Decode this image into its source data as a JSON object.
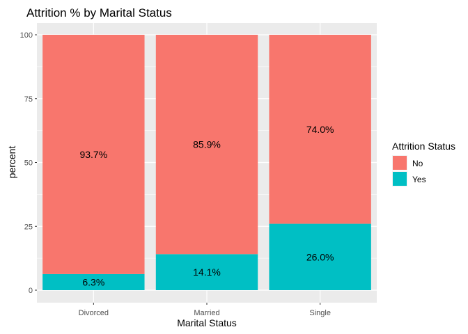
{
  "chart_data": {
    "type": "bar",
    "stacked": true,
    "title": "Attrition % by Marital Status",
    "xlabel": "Marital Status",
    "ylabel": "percent",
    "ylim": [
      0,
      100
    ],
    "yticks": [
      0,
      25,
      50,
      75,
      100
    ],
    "grid": true,
    "categories": [
      "Divorced",
      "Married",
      "Single"
    ],
    "series": [
      {
        "name": "No",
        "color": "#F8766D",
        "values": [
          93.7,
          85.9,
          74.0
        ],
        "labels": [
          "93.7%",
          "85.9%",
          "74.0%"
        ]
      },
      {
        "name": "Yes",
        "color": "#00BFC4",
        "values": [
          6.3,
          14.1,
          26.0
        ],
        "labels": [
          "6.3%",
          "14.1%",
          "26.0%"
        ]
      }
    ],
    "legend": {
      "title": "Attrition Status",
      "position": "right"
    }
  }
}
